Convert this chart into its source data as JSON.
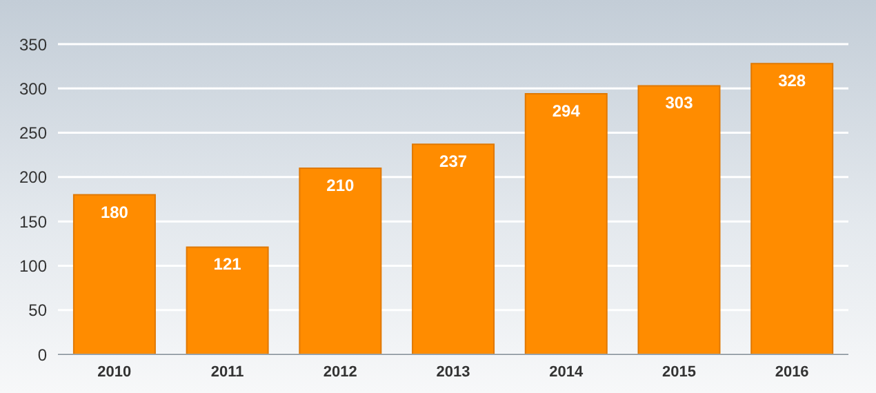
{
  "chart_data": {
    "type": "bar",
    "categories": [
      "2010",
      "2011",
      "2012",
      "2013",
      "2014",
      "2015",
      "2016"
    ],
    "values": [
      180,
      121,
      210,
      237,
      294,
      303,
      328
    ],
    "color": "#ff8c00",
    "ylim": [
      0,
      350
    ],
    "yticks": [
      0,
      50,
      100,
      150,
      200,
      250,
      300,
      350
    ],
    "grid": "y",
    "data_labels": true
  }
}
